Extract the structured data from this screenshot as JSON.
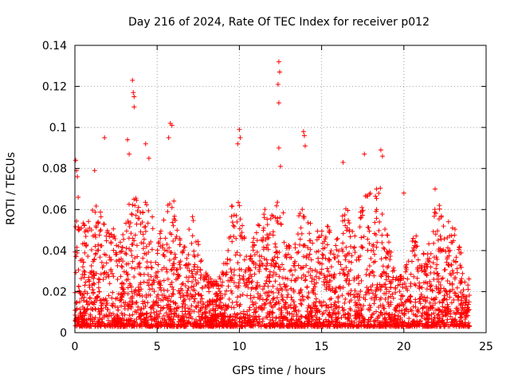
{
  "chart_data": {
    "type": "scatter",
    "title": "Day 216 of 2024, Rate Of TEC Index for receiver p012",
    "xlabel": "GPS time / hours",
    "ylabel": "ROTI / TECUs",
    "xlim": [
      0,
      25
    ],
    "ylim": [
      0,
      0.14
    ],
    "xticks": [
      "0",
      "5",
      "10",
      "15",
      "20",
      "25"
    ],
    "yticks": [
      "0",
      "0.02",
      "0.04",
      "0.06",
      "0.08",
      "0.1",
      "0.12",
      "0.14"
    ],
    "grid": true,
    "marker": "plus",
    "series": [
      {
        "name": "ROTI",
        "color": "#ff0000",
        "data_range": [
          0,
          24
        ],
        "outliers": [
          [
            0.05,
            0.084
          ],
          [
            0.1,
            0.079
          ],
          [
            0.15,
            0.076
          ],
          [
            0.2,
            0.066
          ],
          [
            1.2,
            0.079
          ],
          [
            1.8,
            0.095
          ],
          [
            3.2,
            0.094
          ],
          [
            3.3,
            0.087
          ],
          [
            3.5,
            0.123
          ],
          [
            3.55,
            0.117
          ],
          [
            3.6,
            0.115
          ],
          [
            3.6,
            0.11
          ],
          [
            4.3,
            0.092
          ],
          [
            4.5,
            0.085
          ],
          [
            5.8,
            0.102
          ],
          [
            5.9,
            0.101
          ],
          [
            5.7,
            0.095
          ],
          [
            10.0,
            0.099
          ],
          [
            10.05,
            0.095
          ],
          [
            9.9,
            0.092
          ],
          [
            12.4,
            0.132
          ],
          [
            12.45,
            0.127
          ],
          [
            12.35,
            0.121
          ],
          [
            12.4,
            0.112
          ],
          [
            12.4,
            0.09
          ],
          [
            12.5,
            0.081
          ],
          [
            13.9,
            0.098
          ],
          [
            13.95,
            0.096
          ],
          [
            14.0,
            0.091
          ],
          [
            16.3,
            0.083
          ],
          [
            17.6,
            0.087
          ],
          [
            18.6,
            0.089
          ],
          [
            18.7,
            0.086
          ],
          [
            20.0,
            0.068
          ],
          [
            21.9,
            0.07
          ]
        ]
      }
    ]
  }
}
